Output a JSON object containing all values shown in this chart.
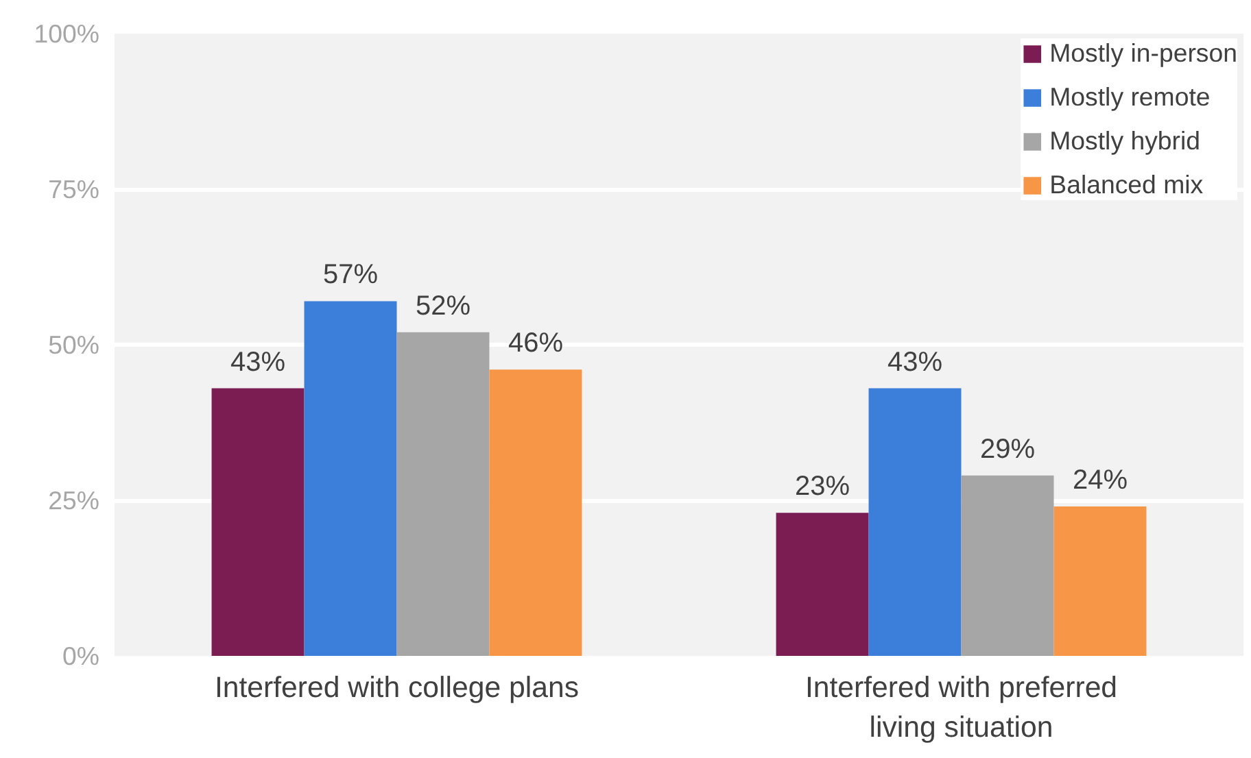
{
  "chart_data": {
    "type": "bar",
    "categories": [
      "Interfered with college plans",
      "Interfered with preferred living situation"
    ],
    "series": [
      {
        "name": "Mostly in-person",
        "color": "#7b1c52",
        "values": [
          43,
          23
        ]
      },
      {
        "name": "Mostly remote",
        "color": "#3c7fdb",
        "values": [
          57,
          43
        ]
      },
      {
        "name": "Mostly hybrid",
        "color": "#a6a6a6",
        "values": [
          52,
          29
        ]
      },
      {
        "name": "Balanced mix",
        "color": "#f79646",
        "values": [
          46,
          24
        ]
      }
    ],
    "ylim": [
      0,
      100
    ],
    "yticks": [
      {
        "value": 0,
        "label": "0%"
      },
      {
        "value": 25,
        "label": "25%"
      },
      {
        "value": 50,
        "label": "50%"
      },
      {
        "value": 75,
        "label": "75%"
      },
      {
        "value": 100,
        "label": "100%"
      }
    ],
    "value_labels": [
      [
        "43%",
        "23%"
      ],
      [
        "57%",
        "43%"
      ],
      [
        "52%",
        "29%"
      ],
      [
        "46%",
        "24%"
      ]
    ],
    "grid": "y",
    "legend": "top right"
  }
}
